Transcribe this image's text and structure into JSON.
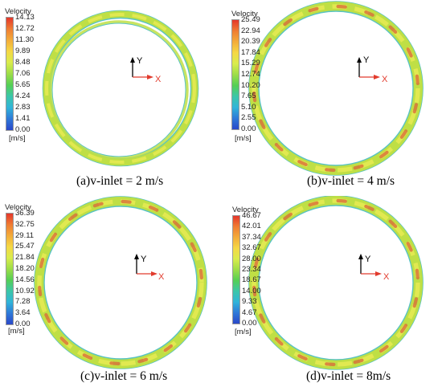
{
  "colorbar_title": "Velocity",
  "colorbar_unit": "[m/s]",
  "axis_labels": {
    "y": "Y",
    "x": "X"
  },
  "colors": {
    "ring_base": "#bfdf45",
    "ring_light": "#e4ea52",
    "ring_edge": "#58c3c2",
    "hot_spot": "#d9653a",
    "axis_y": "#000000",
    "axis_x": "#e23b2d",
    "colorbar": [
      "#e4362b",
      "#ef7d33",
      "#f3ac3a",
      "#f5d845",
      "#d9ec4c",
      "#9ddd48",
      "#55cf55",
      "#3cc6a9",
      "#31b4d9",
      "#2f79d8",
      "#2a48c9"
    ]
  },
  "panels": [
    {
      "caption": "(a)v-inlet = 2 m/s",
      "ticks": [
        "14.13",
        "12.72",
        "11.30",
        "9.89",
        "8.48",
        "7.06",
        "5.65",
        "4.24",
        "2.83",
        "1.41",
        "0.00"
      ]
    },
    {
      "caption": "(b)v-inlet = 4 m/s",
      "ticks": [
        "25.49",
        "22.94",
        "20.39",
        "17.84",
        "15.29",
        "12.74",
        "10.20",
        "7.65",
        "5.10",
        "2.55",
        "0.00"
      ]
    },
    {
      "caption": "(c)v-inlet = 6 m/s",
      "ticks": [
        "36.39",
        "32.75",
        "29.11",
        "25.47",
        "21.84",
        "18.20",
        "14.56",
        "10.92",
        "7.28",
        "3.64",
        "0.00"
      ]
    },
    {
      "caption": "(d)v-inlet = 8m/s",
      "ticks": [
        "46.67",
        "42.01",
        "37.34",
        "32.67",
        "28.00",
        "23.34",
        "18.67",
        "14.00",
        "9.33",
        "4.67",
        "0.00"
      ]
    }
  ]
}
